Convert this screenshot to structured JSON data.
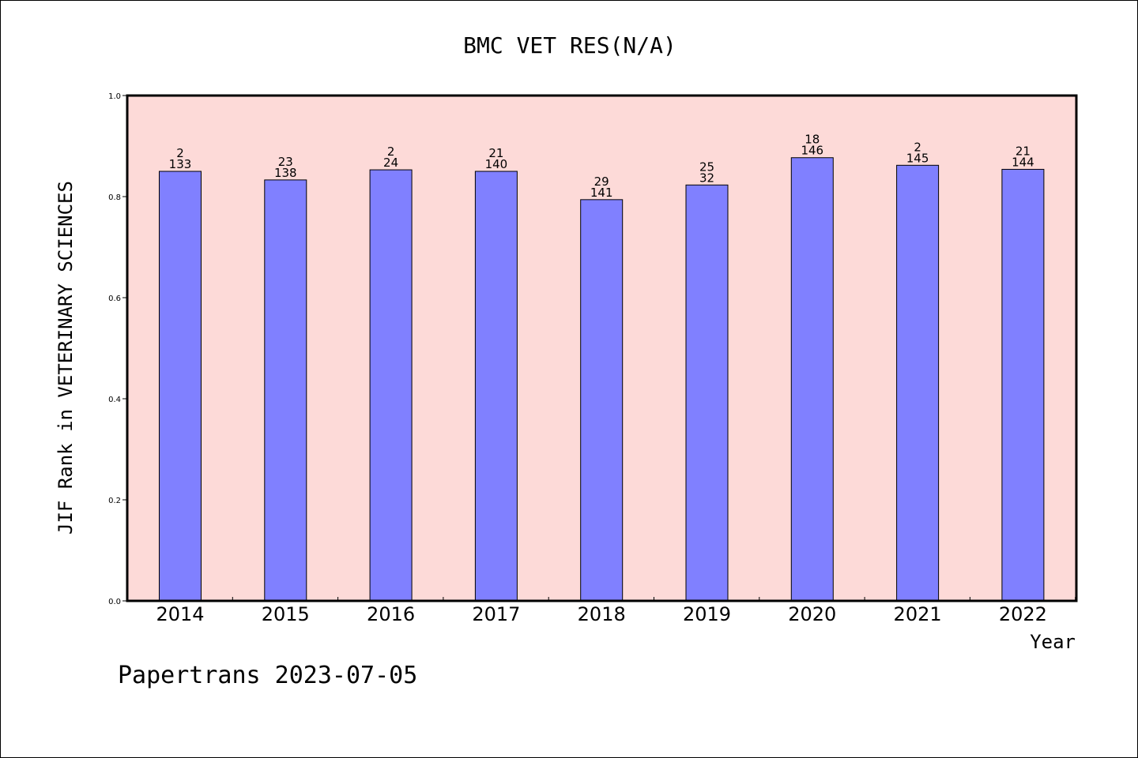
{
  "chart_data": {
    "type": "bar",
    "title": "BMC VET RES(N/A)",
    "xlabel": "Year",
    "ylabel": "JIF Rank in VETERINARY SCIENCES",
    "ylim": [
      0,
      1.0
    ],
    "yticks": [
      "0.0",
      "0.2",
      "0.4",
      "0.6",
      "0.8",
      "1.0"
    ],
    "categories": [
      "2014",
      "2015",
      "2016",
      "2017",
      "2018",
      "2019",
      "2020",
      "2021",
      "2022"
    ],
    "values": [
      0.85,
      0.833,
      0.853,
      0.85,
      0.794,
      0.823,
      0.877,
      0.862,
      0.854
    ],
    "rank_labels": [
      "2",
      "23",
      "2",
      "21",
      "29",
      "25",
      "18",
      "2",
      "21"
    ],
    "total_labels": [
      "133",
      "138",
      "24",
      "140",
      "141",
      "32",
      "146",
      "145",
      "144"
    ],
    "grid": false,
    "colors": {
      "plot_bg": "#fddad8",
      "bar": "#8080ff",
      "bar_edge": "#000000"
    }
  },
  "footer": "Papertrans 2023-07-05"
}
